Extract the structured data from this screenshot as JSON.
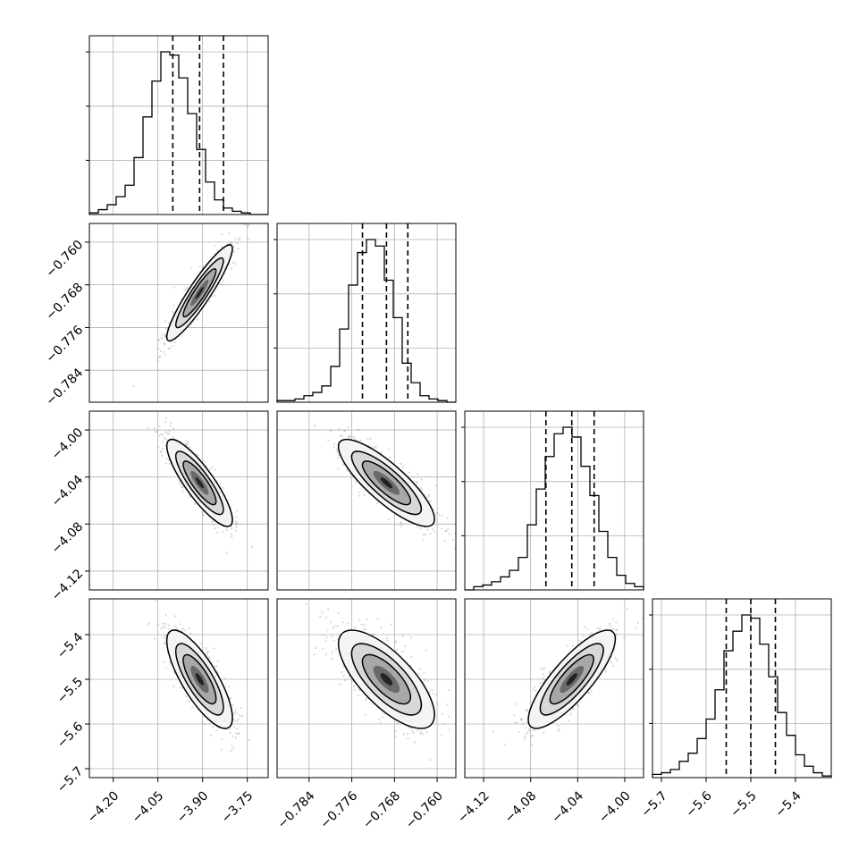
{
  "chart_data": {
    "type": "corner",
    "grid": true,
    "quantiles": [
      0.16,
      0.5,
      0.84
    ],
    "params": [
      {
        "range": [
          -4.28,
          -3.68
        ],
        "ticks": [
          -4.2,
          -4.05,
          -3.9,
          -3.75
        ],
        "tick_labels": [
          "−4.20",
          "−4.05",
          "−3.90",
          "−3.75"
        ],
        "quantile_values": [
          -4.0,
          -3.91,
          -3.83
        ],
        "hist": [
          1,
          3,
          6,
          11,
          18,
          35,
          60,
          82,
          100,
          98,
          84,
          62,
          40,
          20,
          9,
          4,
          2,
          1,
          0,
          0
        ]
      },
      {
        "range": [
          -0.79,
          -0.7565
        ],
        "ticks": [
          -0.784,
          -0.776,
          -0.768,
          -0.76
        ],
        "tick_labels": [
          "−0.784",
          "−0.776",
          "−0.768",
          "−0.760"
        ],
        "quantile_values": [
          -0.774,
          -0.7695,
          -0.7655
        ],
        "hist": [
          1,
          1,
          2,
          4,
          6,
          10,
          22,
          45,
          72,
          92,
          100,
          96,
          75,
          52,
          24,
          12,
          4,
          2,
          1,
          0
        ]
      },
      {
        "range": [
          -4.136,
          -3.984
        ],
        "ticks": [
          -4.12,
          -4.08,
          -4.04,
          -4.0
        ],
        "tick_labels": [
          "−4.12",
          "−4.08",
          "−4.04",
          "−4.00"
        ],
        "quantile_values": [
          -4.067,
          -4.045,
          -4.026
        ],
        "hist": [
          0,
          2,
          3,
          5,
          8,
          12,
          20,
          40,
          62,
          82,
          96,
          100,
          94,
          76,
          58,
          36,
          20,
          9,
          4,
          2
        ]
      },
      {
        "range": [
          -5.72,
          -5.32
        ],
        "ticks": [
          -5.7,
          -5.6,
          -5.5,
          -5.4
        ],
        "tick_labels": [
          "−5.7",
          "−5.6",
          "−5.5",
          "−5.4"
        ],
        "quantile_values": [
          -5.555,
          -5.5,
          -5.445
        ],
        "hist": [
          2,
          3,
          5,
          10,
          15,
          24,
          36,
          54,
          78,
          90,
          100,
          98,
          82,
          62,
          40,
          26,
          14,
          7,
          3,
          1
        ]
      }
    ],
    "pairs": [
      {
        "x": 0,
        "y": 1,
        "mean": [
          -3.91,
          -0.7695
        ],
        "sd": [
          0.055,
          0.0045
        ],
        "corr": 0.92
      },
      {
        "x": 0,
        "y": 2,
        "mean": [
          -3.91,
          -4.045
        ],
        "sd": [
          0.055,
          0.0185
        ],
        "corr": -0.85
      },
      {
        "x": 1,
        "y": 2,
        "mean": [
          -0.7695,
          -4.045
        ],
        "sd": [
          0.0045,
          0.0185
        ],
        "corr": -0.83
      },
      {
        "x": 0,
        "y": 3,
        "mean": [
          -3.91,
          -5.5
        ],
        "sd": [
          0.055,
          0.055
        ],
        "corr": -0.78
      },
      {
        "x": 1,
        "y": 3,
        "mean": [
          -0.7695,
          -5.5
        ],
        "sd": [
          0.0045,
          0.055
        ],
        "corr": -0.72
      },
      {
        "x": 2,
        "y": 3,
        "mean": [
          -4.045,
          -5.5
        ],
        "sd": [
          0.0185,
          0.055
        ],
        "corr": 0.82
      }
    ]
  }
}
